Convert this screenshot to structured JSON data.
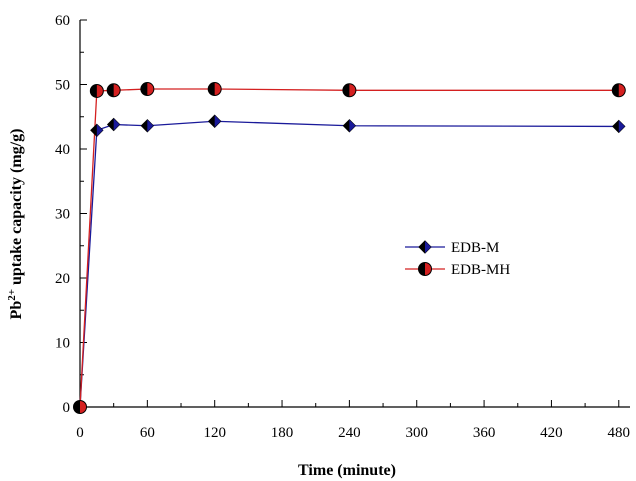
{
  "chart_data": {
    "type": "line",
    "xlabel": "Time (minute)",
    "ylabel_main": "Pb",
    "ylabel_sup": "2+",
    "ylabel_rest": " uptake capacity (mg/g)",
    "xlim": [
      0,
      490
    ],
    "ylim": [
      0,
      60
    ],
    "xticks": [
      0,
      60,
      120,
      180,
      240,
      300,
      360,
      420,
      480
    ],
    "yticks": [
      0,
      10,
      20,
      30,
      40,
      50,
      60
    ],
    "grid": false,
    "legend_position": "center-right",
    "series": [
      {
        "name": "EDB-M",
        "color": "#1a1a9a",
        "marker": "diamond",
        "x": [
          0,
          15,
          30,
          60,
          120,
          240,
          480
        ],
        "y": [
          0,
          42.9,
          43.8,
          43.6,
          44.3,
          43.6,
          43.5
        ]
      },
      {
        "name": "EDB-MH",
        "color": "#d42020",
        "marker": "circle-half",
        "x": [
          0,
          15,
          30,
          60,
          120,
          240,
          480
        ],
        "y": [
          0,
          49.0,
          49.1,
          49.3,
          49.3,
          49.1,
          49.1
        ]
      }
    ]
  }
}
